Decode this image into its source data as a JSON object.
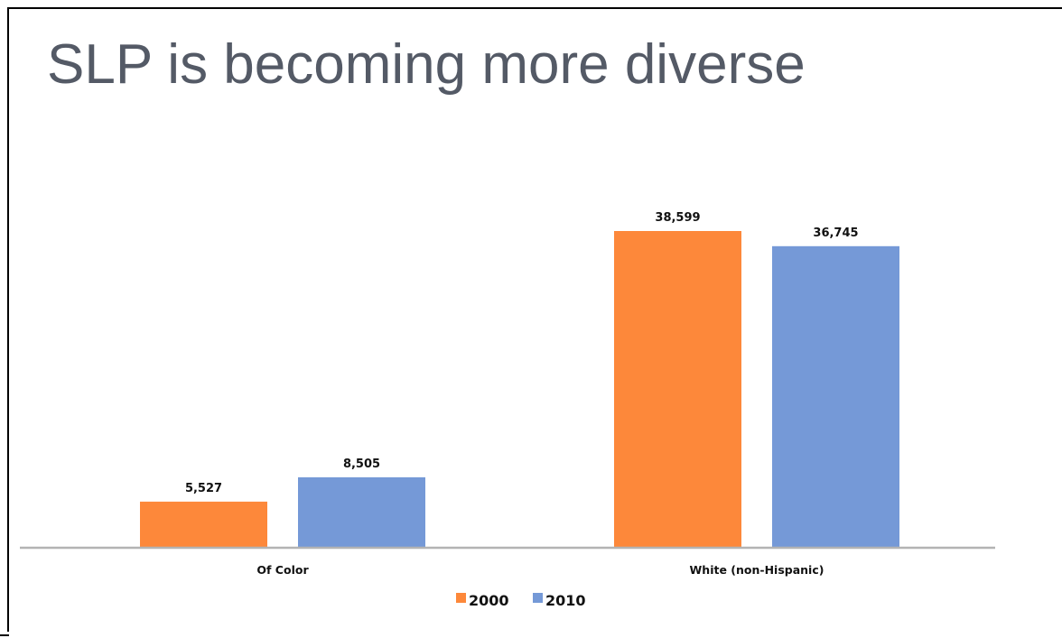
{
  "slide": {
    "title": "SLP is becoming more diverse"
  },
  "colors": {
    "title": "#545a66",
    "axis": "#b3b3b3",
    "label": "#111111"
  },
  "chart_data": {
    "type": "bar",
    "title": "",
    "xlabel": "",
    "ylabel": "",
    "categories": [
      "Of Color",
      "White (non-Hispanic)"
    ],
    "series": [
      {
        "name": "2000",
        "color": "#fd883a",
        "values": [
          5527,
          38599
        ],
        "labels": [
          "5,527",
          "38,599"
        ]
      },
      {
        "name": "2010",
        "color": "#7599d7",
        "values": [
          8505,
          36745
        ],
        "labels": [
          "8,505",
          "36,745"
        ]
      }
    ],
    "ylim": [
      0,
      38599
    ],
    "grid": false,
    "legend": "bottom-center",
    "data_labels": true
  }
}
